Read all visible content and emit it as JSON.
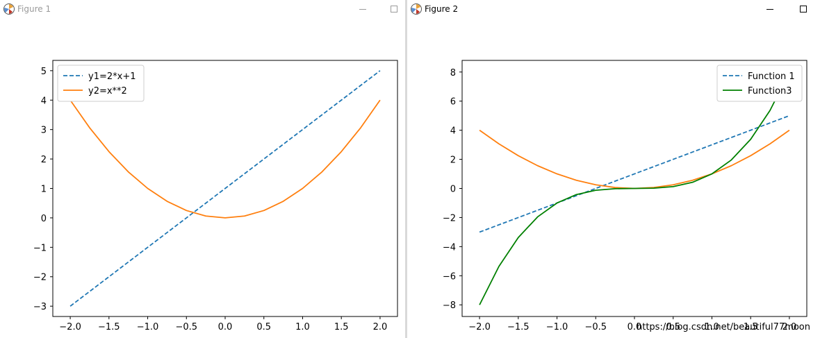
{
  "windows": [
    {
      "title": "Figure 1",
      "chart_data": {
        "type": "line",
        "xlim": [
          -2.225,
          2.225
        ],
        "ylim": [
          -3.35,
          5.35
        ],
        "xticks": [
          -2.0,
          -1.5,
          -1.0,
          -0.5,
          0.0,
          0.5,
          1.0,
          1.5,
          2.0
        ],
        "xtick_labels": [
          "−2.0",
          "−1.5",
          "−1.0",
          "−0.5",
          "0.0",
          "0.5",
          "1.0",
          "1.5",
          "2.0"
        ],
        "yticks": [
          -3,
          -2,
          -1,
          0,
          1,
          2,
          3,
          4,
          5
        ],
        "ytick_labels": [
          "−3",
          "−2",
          "−1",
          "0",
          "1",
          "2",
          "3",
          "4",
          "5"
        ],
        "legend": "top-left",
        "grid": false,
        "series": [
          {
            "name": "y1=2*x+1",
            "color": "#1f77b4",
            "dash": "dashed",
            "x": [
              -2.0,
              -1.5,
              -1.0,
              -0.5,
              0.0,
              0.5,
              1.0,
              1.5,
              2.0
            ],
            "y": [
              -3.0,
              -2.0,
              -1.0,
              0.0,
              1.0,
              2.0,
              3.0,
              4.0,
              5.0
            ]
          },
          {
            "name": "y2=x**2",
            "color": "#ff7f0e",
            "dash": "solid",
            "x": [
              -2.0,
              -1.75,
              -1.5,
              -1.25,
              -1.0,
              -0.75,
              -0.5,
              -0.25,
              0.0,
              0.25,
              0.5,
              0.75,
              1.0,
              1.25,
              1.5,
              1.75,
              2.0
            ],
            "y": [
              4.0,
              3.0625,
              2.25,
              1.5625,
              1.0,
              0.5625,
              0.25,
              0.0625,
              0.0,
              0.0625,
              0.25,
              0.5625,
              1.0,
              1.5625,
              2.25,
              3.0625,
              4.0
            ]
          }
        ]
      }
    },
    {
      "title": "Figure 2",
      "watermark": "https://blog.csdn.net/beautiful77moon",
      "chart_data": {
        "type": "line",
        "xlim": [
          -2.225,
          2.225
        ],
        "ylim": [
          -8.8,
          8.8
        ],
        "xticks": [
          -2.0,
          -1.5,
          -1.0,
          -0.5,
          0.0,
          0.5,
          1.0,
          1.5,
          2.0
        ],
        "xtick_labels": [
          "−2.0",
          "−1.5",
          "−1.0",
          "−0.5",
          "0.0",
          "0.5",
          "1.0",
          "1.5",
          "2.0"
        ],
        "yticks": [
          -8,
          -6,
          -4,
          -2,
          0,
          2,
          4,
          6,
          8
        ],
        "ytick_labels": [
          "−8",
          "−6",
          "−4",
          "−2",
          "0",
          "2",
          "4",
          "6",
          "8"
        ],
        "legend": "top-right",
        "grid": false,
        "series": [
          {
            "name": "Function 1",
            "color": "#1f77b4",
            "dash": "dashed",
            "legend": true,
            "x": [
              -2.0,
              -1.5,
              -1.0,
              -0.5,
              0.0,
              0.5,
              1.0,
              1.5,
              2.0
            ],
            "y": [
              -3.0,
              -2.0,
              -1.0,
              0.0,
              1.0,
              2.0,
              3.0,
              4.0,
              5.0
            ]
          },
          {
            "color": "#ff7f0e",
            "dash": "solid",
            "legend": false,
            "x": [
              -2.0,
              -1.75,
              -1.5,
              -1.25,
              -1.0,
              -0.75,
              -0.5,
              -0.25,
              0.0,
              0.25,
              0.5,
              0.75,
              1.0,
              1.25,
              1.5,
              1.75,
              2.0
            ],
            "y": [
              4.0,
              3.0625,
              2.25,
              1.5625,
              1.0,
              0.5625,
              0.25,
              0.0625,
              0.0,
              0.0625,
              0.25,
              0.5625,
              1.0,
              1.5625,
              2.25,
              3.0625,
              4.0
            ]
          },
          {
            "name": "Function3",
            "color": "#008000",
            "dash": "solid",
            "legend": true,
            "x": [
              -2.0,
              -1.75,
              -1.5,
              -1.25,
              -1.0,
              -0.75,
              -0.5,
              -0.25,
              0.0,
              0.25,
              0.5,
              0.75,
              1.0,
              1.25,
              1.5,
              1.75,
              2.0
            ],
            "y": [
              -8.0,
              -5.359,
              -3.375,
              -1.953,
              -1.0,
              -0.422,
              -0.125,
              -0.016,
              0.0,
              0.016,
              0.125,
              0.422,
              1.0,
              1.953,
              3.375,
              5.359,
              8.0
            ]
          }
        ]
      }
    }
  ]
}
